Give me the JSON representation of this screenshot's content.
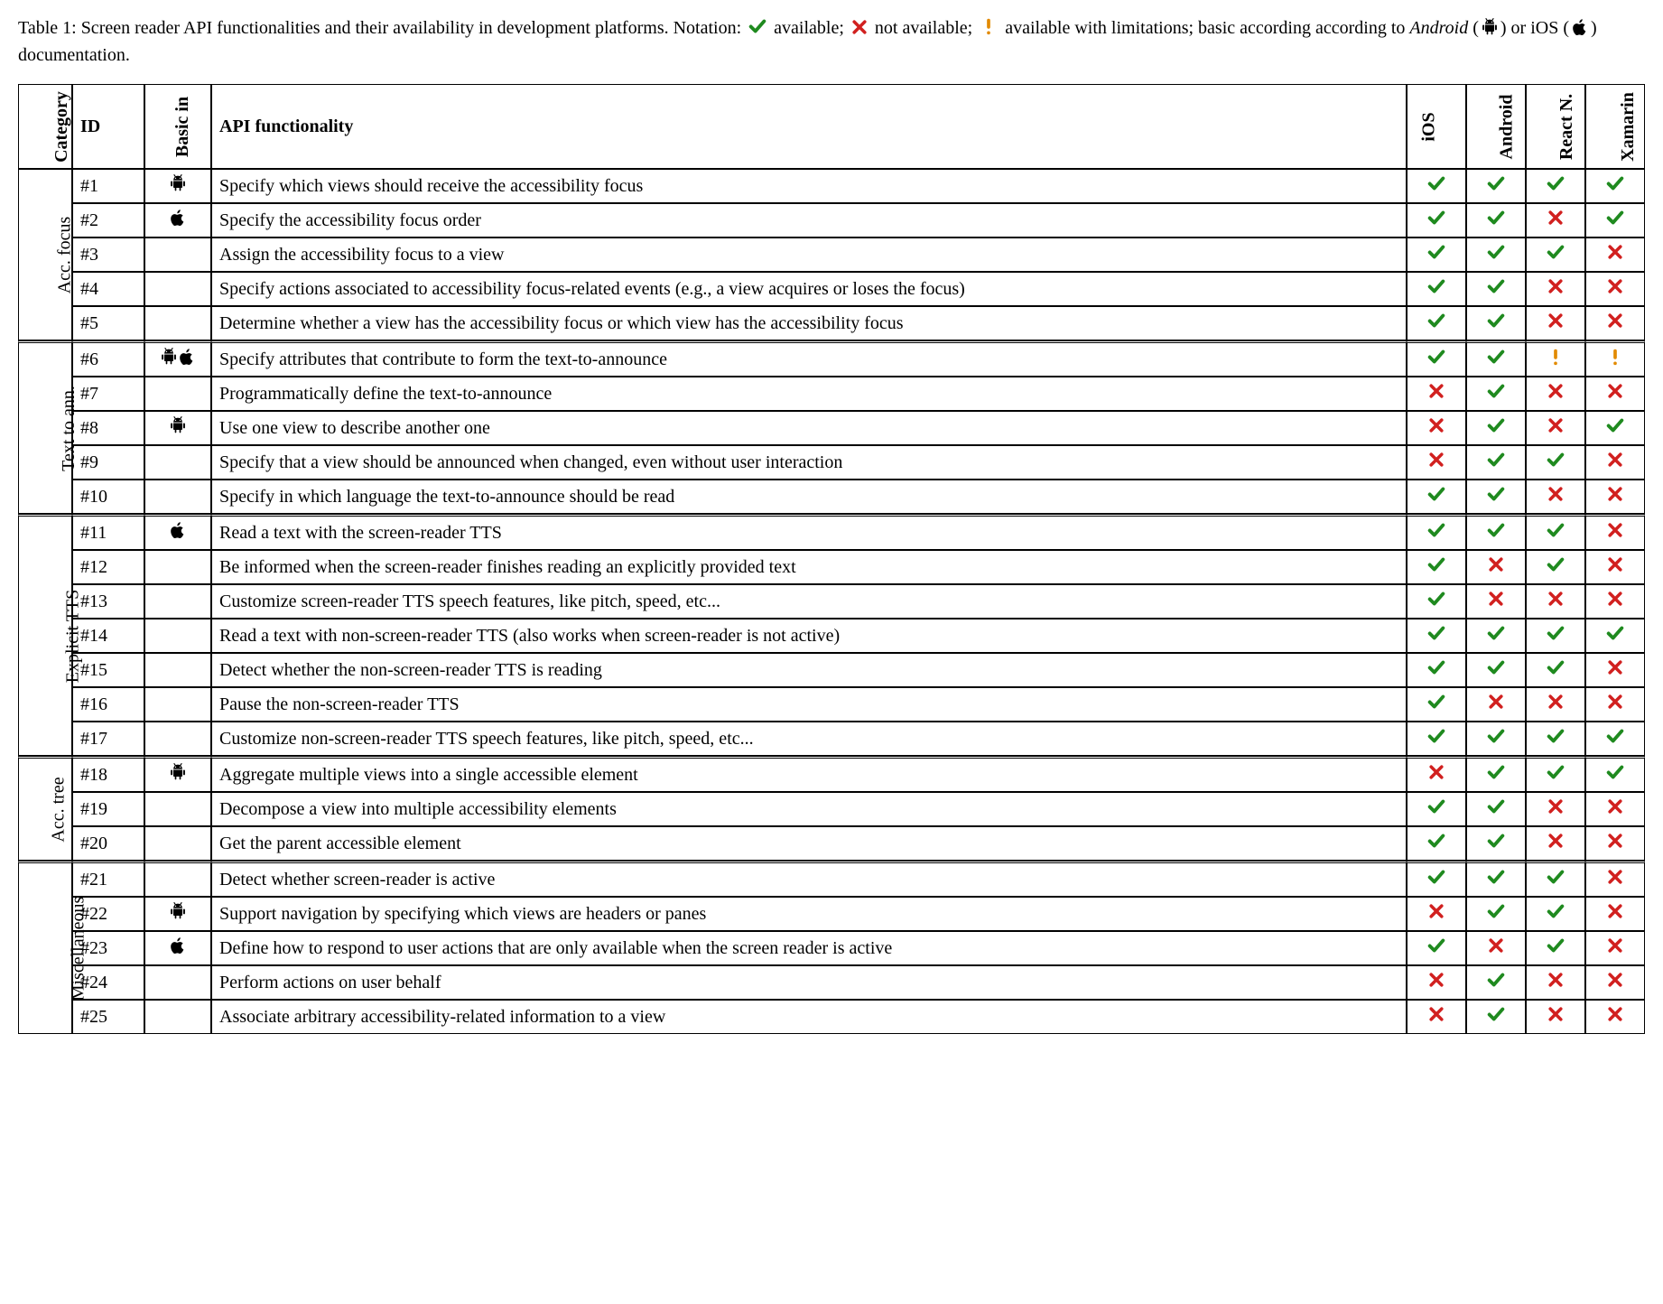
{
  "caption": {
    "prefix": "Table 1: Screen reader API functionalities and their availability in development platforms. Notation: ",
    "legend": [
      {
        "sym": "check",
        "label": " available; "
      },
      {
        "sym": "cross",
        "label": " not available; "
      },
      {
        "sym": "warn",
        "label": " available with limitations; basic according according to "
      }
    ],
    "tail_android_pre": "Android",
    "tail_mid": " (",
    "tail_android_post": ") or iOS (",
    "tail_end": ") documentation."
  },
  "symbols": {
    "check": {
      "color": "#1f8a1f",
      "size": 22
    },
    "cross": {
      "color": "#d1201f",
      "size": 20
    },
    "warn": {
      "color": "#e28a00",
      "size": 22
    },
    "android": {
      "color": "#000000",
      "size": 20
    },
    "apple": {
      "color": "#000000",
      "size": 20
    }
  },
  "headers": {
    "category": "Category",
    "id": "ID",
    "basic_in": "Basic in",
    "functionality": "API functionality",
    "platforms": [
      "iOS",
      "Android",
      "React N.",
      "Xamarin"
    ]
  },
  "groups": [
    {
      "label": "Acc. focus",
      "rows": [
        {
          "id": "#1",
          "basic": [
            "android"
          ],
          "func": "Specify which views should receive the accessibility focus",
          "plat": [
            "check",
            "check",
            "check",
            "check"
          ]
        },
        {
          "id": "#2",
          "basic": [
            "apple"
          ],
          "func": "Specify the accessibility focus order",
          "plat": [
            "check",
            "check",
            "cross",
            "check"
          ]
        },
        {
          "id": "#3",
          "basic": [],
          "func": "Assign the accessibility focus to a view",
          "plat": [
            "check",
            "check",
            "check",
            "cross"
          ]
        },
        {
          "id": "#4",
          "basic": [],
          "func": "Specify actions associated to accessibility focus-related events (e.g., a view acquires or loses the focus)",
          "plat": [
            "check",
            "check",
            "cross",
            "cross"
          ]
        },
        {
          "id": "#5",
          "basic": [],
          "func": "Determine whether a view has the accessibility focus or which view has the accessibility focus",
          "plat": [
            "check",
            "check",
            "cross",
            "cross"
          ]
        }
      ]
    },
    {
      "label": "Text to ann.",
      "rows": [
        {
          "id": "#6",
          "basic": [
            "android",
            "apple"
          ],
          "func": "Specify attributes that contribute to form the text-to-announce",
          "plat": [
            "check",
            "check",
            "warn",
            "warn"
          ]
        },
        {
          "id": "#7",
          "basic": [],
          "func": "Programmatically define the text-to-announce",
          "plat": [
            "cross",
            "check",
            "cross",
            "cross"
          ]
        },
        {
          "id": "#8",
          "basic": [
            "android"
          ],
          "func": "Use one view to describe another one",
          "plat": [
            "cross",
            "check",
            "cross",
            "check"
          ]
        },
        {
          "id": "#9",
          "basic": [],
          "func": "Specify that a view should be announced when changed, even without user interaction",
          "plat": [
            "cross",
            "check",
            "check",
            "cross"
          ]
        },
        {
          "id": "#10",
          "basic": [],
          "func": "Specify in which language the text-to-announce should be read",
          "plat": [
            "check",
            "check",
            "cross",
            "cross"
          ]
        }
      ]
    },
    {
      "label": "Explicit TTS",
      "rows": [
        {
          "id": "#11",
          "basic": [
            "apple"
          ],
          "func": "Read a text with the screen-reader TTS",
          "plat": [
            "check",
            "check",
            "check",
            "cross"
          ]
        },
        {
          "id": "#12",
          "basic": [],
          "func": "Be informed when the screen-reader finishes reading an explicitly provided text",
          "plat": [
            "check",
            "cross",
            "check",
            "cross"
          ]
        },
        {
          "id": "#13",
          "basic": [],
          "func": "Customize screen-reader TTS speech features, like pitch, speed, etc...",
          "plat": [
            "check",
            "cross",
            "cross",
            "cross"
          ]
        },
        {
          "id": "#14",
          "basic": [],
          "func": "Read a text with non-screen-reader TTS (also works when screen-reader is not active)",
          "plat": [
            "check",
            "check",
            "check",
            "check"
          ]
        },
        {
          "id": "#15",
          "basic": [],
          "func": "Detect whether the non-screen-reader TTS is reading",
          "plat": [
            "check",
            "check",
            "check",
            "cross"
          ]
        },
        {
          "id": "#16",
          "basic": [],
          "func": "Pause the non-screen-reader TTS",
          "plat": [
            "check",
            "cross",
            "cross",
            "cross"
          ]
        },
        {
          "id": "#17",
          "basic": [],
          "func": "Customize non-screen-reader TTS speech features, like pitch, speed, etc...",
          "plat": [
            "check",
            "check",
            "check",
            "check"
          ]
        }
      ]
    },
    {
      "label": "Acc. tree",
      "rows": [
        {
          "id": "#18",
          "basic": [
            "android"
          ],
          "func": "Aggregate multiple views into a single accessible element",
          "plat": [
            "cross",
            "check",
            "check",
            "check"
          ]
        },
        {
          "id": "#19",
          "basic": [],
          "func": "Decompose a view into multiple accessibility elements",
          "plat": [
            "check",
            "check",
            "cross",
            "cross"
          ]
        },
        {
          "id": "#20",
          "basic": [],
          "func": "Get the parent accessible element",
          "plat": [
            "check",
            "check",
            "cross",
            "cross"
          ]
        }
      ]
    },
    {
      "label": "Miscellaneous",
      "rows": [
        {
          "id": "#21",
          "basic": [],
          "func": "Detect whether screen-reader is active",
          "plat": [
            "check",
            "check",
            "check",
            "cross"
          ]
        },
        {
          "id": "#22",
          "basic": [
            "android"
          ],
          "func": "Support navigation by specifying which views are headers or panes",
          "plat": [
            "cross",
            "check",
            "check",
            "cross"
          ]
        },
        {
          "id": "#23",
          "basic": [
            "apple"
          ],
          "func": "Define how to respond to user actions that are only available when the screen reader is active",
          "plat": [
            "check",
            "cross",
            "check",
            "cross"
          ]
        },
        {
          "id": "#24",
          "basic": [],
          "func": "Perform actions on user behalf",
          "plat": [
            "cross",
            "check",
            "cross",
            "cross"
          ]
        },
        {
          "id": "#25",
          "basic": [],
          "func": "Associate arbitrary accessibility-related information to a view",
          "plat": [
            "cross",
            "check",
            "cross",
            "cross"
          ]
        }
      ]
    }
  ]
}
